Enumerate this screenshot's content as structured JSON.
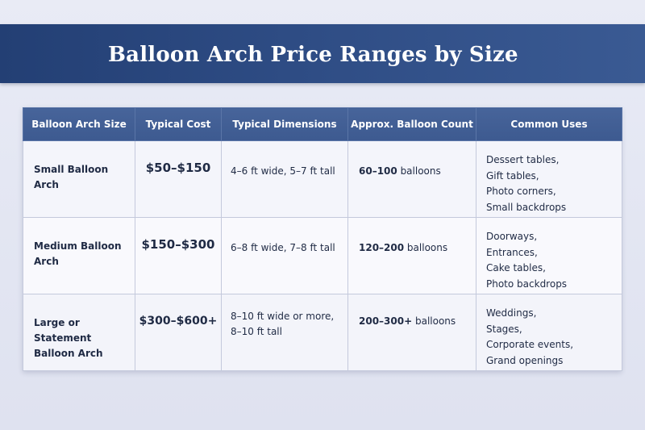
{
  "title": "Balloon Arch Price Ranges by Size",
  "colors": {
    "banner": "#2e4c84",
    "header": "#43609a",
    "text": "#1f2a44"
  },
  "table": {
    "headers": [
      "Balloon Arch Size",
      "Typical Cost",
      "Typical Dimensions",
      "Approx. Balloon Count",
      "Common Uses"
    ],
    "rows": [
      {
        "size": "Small Balloon Arch",
        "cost": "$50–$150",
        "dimensions": [
          "4–6 ft wide, 5–7 ft tall"
        ],
        "count": "60–100",
        "count_unit": " balloons",
        "uses": [
          "Dessert tables,",
          "Gift tables,",
          "Photo corners,",
          "Small backdrops"
        ]
      },
      {
        "size": "Medium Balloon Arch",
        "cost": "$150–$300",
        "dimensions": [
          "6–8 ft wide, 7–8 ft tall"
        ],
        "count": "120–200",
        "count_unit": " balloons",
        "uses": [
          "Doorways,",
          "Entrances,",
          "Cake tables,",
          "Photo backdrops"
        ]
      },
      {
        "size": "Large or Statement Balloon Arch",
        "cost": "$300–$600+",
        "dimensions": [
          "8–10 ft wide or more,",
          "8–10 ft tall"
        ],
        "count": "200–300+",
        "count_unit": " balloons",
        "uses": [
          "Weddings,",
          "Stages,",
          "Corporate events,",
          "Grand openings"
        ]
      }
    ]
  }
}
